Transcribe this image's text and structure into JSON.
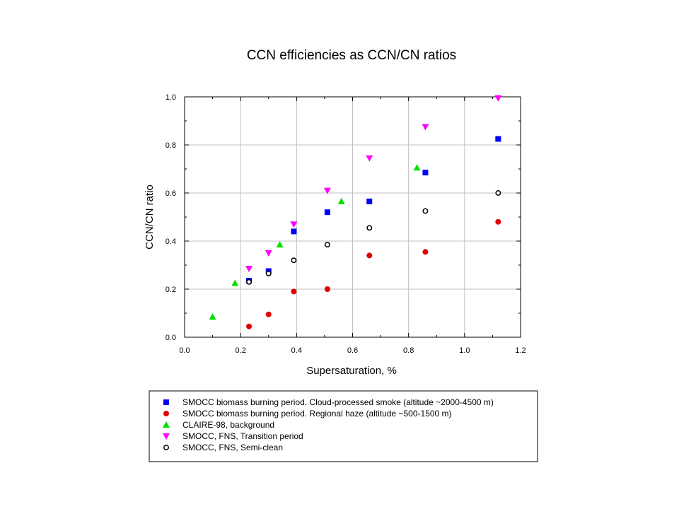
{
  "chart_data": {
    "type": "scatter",
    "title": "CCN efficiencies as CCN/CN ratios",
    "xlabel": "Supersaturation,  %",
    "ylabel": "CCN/CN ratio",
    "xlim": [
      0,
      1.2
    ],
    "ylim": [
      0,
      1.0
    ],
    "xticks": [
      "0.0",
      "0.2",
      "0.4",
      "0.6",
      "0.8",
      "1.0",
      "1.2"
    ],
    "yticks": [
      "0.0",
      "0.2",
      "0.4",
      "0.6",
      "0.8",
      "1.0"
    ],
    "grid": true,
    "legend_position": "below",
    "series": [
      {
        "name": "SMOCC biomass burning period. Cloud-processed smoke  (altitude ~2000-4500 m)",
        "marker": "square",
        "color": "#0000ff",
        "x": [
          0.23,
          0.3,
          0.39,
          0.51,
          0.66,
          0.86,
          1.12
        ],
        "y": [
          0.235,
          0.275,
          0.44,
          0.52,
          0.565,
          0.685,
          0.825
        ]
      },
      {
        "name": "SMOCC biomass burning period. Regional haze (altitude ~500-1500 m)",
        "marker": "circle",
        "color": "#e00000",
        "x": [
          0.23,
          0.3,
          0.39,
          0.51,
          0.66,
          0.86,
          1.12
        ],
        "y": [
          0.045,
          0.095,
          0.19,
          0.2,
          0.34,
          0.355,
          0.48
        ]
      },
      {
        "name": "CLAIRE-98, background",
        "marker": "triangle-up",
        "color": "#00e000",
        "x": [
          0.1,
          0.18,
          0.34,
          0.56,
          0.83
        ],
        "y": [
          0.085,
          0.225,
          0.385,
          0.565,
          0.705
        ]
      },
      {
        "name": "SMOCC, FNS, Transition period",
        "marker": "triangle-down",
        "color": "#ff00ff",
        "x": [
          0.23,
          0.3,
          0.39,
          0.51,
          0.66,
          0.86,
          1.12
        ],
        "y": [
          0.285,
          0.35,
          0.47,
          0.61,
          0.745,
          0.875,
          0.995
        ]
      },
      {
        "name": "SMOCC, FNS, Semi-clean",
        "marker": "circle-open",
        "color": "#000000",
        "x": [
          0.23,
          0.3,
          0.39,
          0.51,
          0.66,
          0.86,
          1.12
        ],
        "y": [
          0.23,
          0.265,
          0.32,
          0.385,
          0.455,
          0.525,
          0.6
        ]
      }
    ]
  }
}
